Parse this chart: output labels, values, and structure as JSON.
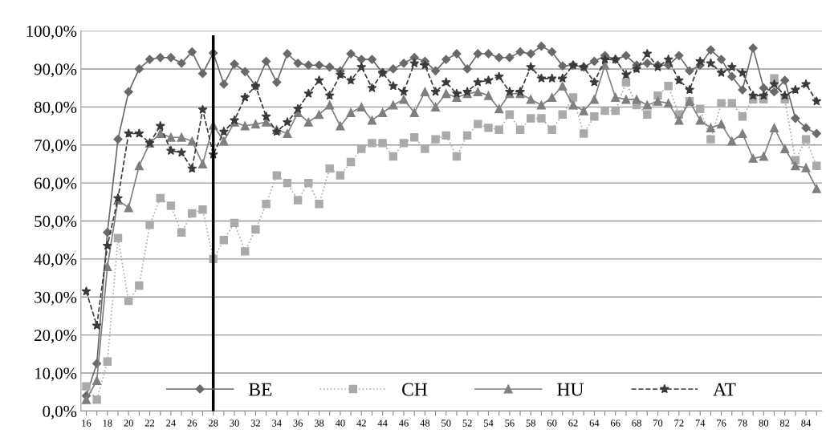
{
  "chart_data": {
    "type": "line",
    "categories": [
      "16",
      null,
      "18",
      null,
      "20",
      null,
      "22",
      null,
      "24",
      null,
      "26",
      null,
      "28",
      null,
      "30",
      null,
      "32",
      null,
      "34",
      null,
      "36",
      null,
      "38",
      null,
      "40",
      null,
      "42",
      null,
      "44",
      null,
      "46",
      null,
      "48",
      null,
      "50",
      null,
      "52",
      null,
      "54",
      null,
      "56",
      null,
      "58",
      null,
      "60",
      null,
      "62",
      null,
      "64",
      null,
      "66",
      null,
      "68",
      null,
      "70",
      null,
      "72",
      null,
      "74",
      null,
      "76",
      null,
      "78",
      null,
      "80",
      null,
      "82",
      null,
      "84",
      null
    ],
    "series": [
      {
        "name": "BE",
        "color": "#696969",
        "marker": "diamond",
        "line_style": "solid",
        "values": [
          4,
          12.5,
          47,
          71.5,
          84,
          90,
          92.5,
          93,
          93,
          91.5,
          94.5,
          88.8,
          94.2,
          86,
          91.3,
          89.3,
          85.5,
          92,
          86.5,
          94,
          91.5,
          91,
          91,
          90.5,
          89.5,
          94,
          92.5,
          92.5,
          89,
          90,
          91.5,
          93,
          92,
          89.5,
          92.5,
          94,
          90,
          94,
          94,
          93,
          93,
          94.5,
          94,
          96,
          94.5,
          90.8,
          91,
          90.5,
          92,
          93.5,
          92.5,
          93.5,
          91,
          91.5,
          91,
          91,
          93.5,
          89.5,
          91,
          95,
          92.5,
          88,
          84.5,
          95.5,
          85,
          84,
          87,
          77,
          74.5,
          73
        ]
      },
      {
        "name": "CH",
        "color": "#aaaaaa",
        "marker": "square",
        "line_style": "dotted",
        "values": [
          6.5,
          3,
          13,
          45.5,
          29,
          33,
          49,
          56,
          54,
          47,
          52,
          53,
          40,
          45,
          49.5,
          42,
          47.8,
          54.5,
          62,
          60,
          55.5,
          60,
          54.5,
          63.8,
          62,
          65.5,
          69,
          70.5,
          70.5,
          67,
          70.5,
          72,
          69,
          71.5,
          72.5,
          67,
          72.5,
          75.5,
          74.5,
          74,
          78,
          74,
          77,
          77,
          74,
          78,
          82.5,
          73,
          77.5,
          79,
          79,
          86.5,
          80.5,
          78,
          83,
          85.5,
          78,
          81.5,
          79.5,
          71.5,
          81,
          81,
          77.5,
          82,
          82,
          87.5,
          82,
          66,
          71.5,
          64.5
        ]
      },
      {
        "name": "HU",
        "color": "#7f7f7f",
        "marker": "triangle",
        "line_style": "solid",
        "values": [
          3,
          8,
          38,
          55.5,
          53.5,
          64.5,
          70.5,
          73,
          72,
          72,
          71,
          65,
          75.2,
          71,
          76,
          75,
          75.5,
          76,
          74,
          73,
          78.5,
          76,
          78,
          80.5,
          75,
          78.5,
          80,
          76.5,
          78.5,
          80.5,
          82,
          78.5,
          84,
          80,
          83.5,
          82.5,
          83.5,
          84,
          83,
          79.5,
          83.5,
          83.5,
          82,
          80.5,
          82.5,
          85.5,
          80.5,
          79,
          82,
          91,
          82.5,
          82,
          82,
          80.5,
          81.5,
          81,
          76.5,
          81.5,
          76.5,
          74.5,
          75.5,
          71,
          73,
          66.5,
          67,
          74.5,
          69,
          64.5,
          64,
          58.5
        ]
      },
      {
        "name": "AT",
        "color": "#3a3a3a",
        "marker": "star",
        "line_style": "dashed",
        "values": [
          31.5,
          22.5,
          43.5,
          56,
          73,
          73,
          70.5,
          75,
          68.5,
          68,
          63.8,
          79.3,
          67.5,
          73.5,
          76.5,
          82.5,
          85.5,
          77.5,
          73.5,
          76,
          79.5,
          83.5,
          87,
          83,
          88.5,
          87,
          90.5,
          85,
          89,
          85.5,
          84,
          91.5,
          91,
          84,
          86.5,
          83.5,
          84,
          86.5,
          87,
          88,
          84,
          84,
          90.5,
          87.5,
          87.5,
          87.5,
          91,
          90.5,
          86.5,
          92.5,
          92.5,
          88.5,
          90,
          94,
          90.5,
          92.5,
          87,
          84.5,
          92,
          91.5,
          89,
          90.5,
          89,
          83,
          83,
          86,
          83,
          84.5,
          86,
          81.5
        ]
      }
    ],
    "ylim": [
      0,
      100
    ],
    "yticks": [
      {
        "value": 0,
        "label": "0,0%"
      },
      {
        "value": 10,
        "label": "10,0%"
      },
      {
        "value": 20,
        "label": "20,0%"
      },
      {
        "value": 30,
        "label": "30,0%"
      },
      {
        "value": 40,
        "label": "40,0%"
      },
      {
        "value": 50,
        "label": "50,0%"
      },
      {
        "value": 60,
        "label": "60,0%"
      },
      {
        "value": 70,
        "label": "70,0%"
      },
      {
        "value": 80,
        "label": "80,0%"
      },
      {
        "value": 90,
        "label": "90,0%"
      },
      {
        "value": 100,
        "label": "100,0%"
      }
    ],
    "ref_lines": [
      {
        "axis": "x",
        "value": "28",
        "label": null,
        "color": "#000000",
        "line_style": "solid"
      }
    ],
    "grid": "y",
    "legend": "bottom"
  }
}
